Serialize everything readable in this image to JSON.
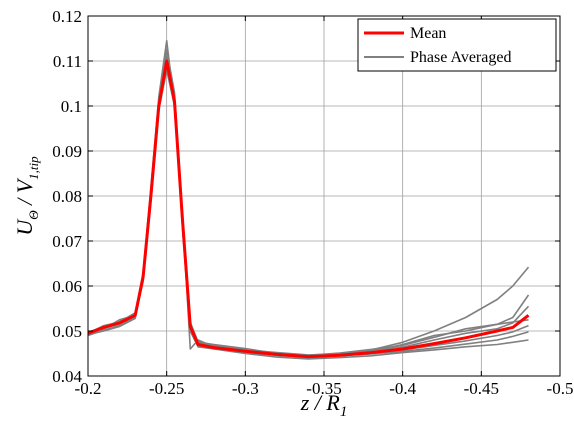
{
  "chart_data": {
    "type": "line",
    "title": "",
    "xlabel": "z / R",
    "xlabel_subscript": "1",
    "ylabel": "U / V",
    "ylabel_subscript_1": "Θ",
    "ylabel_subscript_2": "1,tip",
    "xlim": [
      -0.2,
      -0.5
    ],
    "ylim": [
      0.04,
      0.12
    ],
    "x_ticks": [
      "-0.2",
      "-0.25",
      "-0.3",
      "-0.35",
      "-0.4",
      "-0.45",
      "-0.5"
    ],
    "y_ticks": [
      "0.04",
      "0.05",
      "0.06",
      "0.07",
      "0.08",
      "0.09",
      "0.1",
      "0.11",
      "0.12"
    ],
    "grid": true,
    "legend_position": "top-right",
    "series": [
      {
        "name": "Mean",
        "color": "#ff0000",
        "x": [
          -0.2,
          -0.21,
          -0.22,
          -0.23,
          -0.235,
          -0.24,
          -0.245,
          -0.25,
          -0.255,
          -0.26,
          -0.265,
          -0.27,
          -0.28,
          -0.3,
          -0.32,
          -0.34,
          -0.36,
          -0.38,
          -0.4,
          -0.42,
          -0.44,
          -0.46,
          -0.47,
          -0.48
        ],
        "y": [
          0.0495,
          0.0508,
          0.0518,
          0.0535,
          0.062,
          0.08,
          0.1,
          0.11,
          0.101,
          0.075,
          0.051,
          0.047,
          0.0463,
          0.0455,
          0.0448,
          0.0443,
          0.0446,
          0.0452,
          0.046,
          0.0472,
          0.0485,
          0.05,
          0.0508,
          0.0535
        ]
      },
      {
        "name": "Phase Averaged",
        "color": "#808080",
        "x": [
          -0.2,
          -0.21,
          -0.22,
          -0.23,
          -0.235,
          -0.24,
          -0.245,
          -0.25,
          -0.255,
          -0.26,
          -0.265,
          -0.27,
          -0.28,
          -0.3,
          -0.32,
          -0.34,
          -0.36,
          -0.38,
          -0.4,
          -0.42,
          -0.44,
          -0.46,
          -0.47,
          -0.48
        ],
        "y": [
          0.0495,
          0.0512,
          0.052,
          0.054,
          0.063,
          0.082,
          0.102,
          0.1145,
          0.1,
          0.074,
          0.05,
          0.0465,
          0.0462,
          0.0452,
          0.0446,
          0.0441,
          0.0445,
          0.0449,
          0.0455,
          0.0462,
          0.0471,
          0.048,
          0.0488,
          0.0498
        ]
      }
    ],
    "extra_phase_averaged_traces": [
      [
        0.049,
        0.0502,
        0.0512,
        0.053,
        0.061,
        0.079,
        0.099,
        0.108,
        0.1,
        0.076,
        0.046,
        0.048,
        0.0465,
        0.0458,
        0.0452,
        0.0447,
        0.0449,
        0.0458,
        0.0475,
        0.05,
        0.053,
        0.057,
        0.06,
        0.0642
      ],
      [
        0.0498,
        0.0505,
        0.0525,
        0.0535,
        0.062,
        0.081,
        0.101,
        0.1125,
        0.103,
        0.076,
        0.052,
        0.0475,
        0.047,
        0.0461,
        0.045,
        0.0445,
        0.0449,
        0.0455,
        0.047,
        0.049,
        0.05,
        0.0515,
        0.053,
        0.058
      ],
      [
        0.0492,
        0.05,
        0.051,
        0.0528,
        0.0615,
        0.079,
        0.1,
        0.109,
        0.1,
        0.073,
        0.05,
        0.0465,
        0.046,
        0.045,
        0.0442,
        0.0438,
        0.0441,
        0.0445,
        0.0452,
        0.0458,
        0.0465,
        0.047,
        0.0475,
        0.048
      ],
      [
        0.0496,
        0.0508,
        0.0518,
        0.0537,
        0.0625,
        0.0805,
        0.1,
        0.1105,
        0.102,
        0.075,
        0.051,
        0.0472,
        0.0467,
        0.0457,
        0.0449,
        0.0444,
        0.0448,
        0.0456,
        0.0464,
        0.048,
        0.0495,
        0.0505,
        0.0518,
        0.0555
      ],
      [
        0.0493,
        0.0506,
        0.0516,
        0.0532,
        0.062,
        0.08,
        0.0995,
        0.1095,
        0.1,
        0.074,
        0.0505,
        0.0468,
        0.0462,
        0.0453,
        0.0446,
        0.0441,
        0.0446,
        0.0451,
        0.0458,
        0.0468,
        0.0478,
        0.049,
        0.0498,
        0.0512
      ],
      [
        0.0497,
        0.051,
        0.052,
        0.054,
        0.0625,
        0.0815,
        0.101,
        0.111,
        0.102,
        0.0755,
        0.0515,
        0.0476,
        0.0469,
        0.0459,
        0.0451,
        0.0446,
        0.0451,
        0.0459,
        0.0468,
        0.0486,
        0.0505,
        0.0515,
        0.052,
        0.0525
      ]
    ]
  }
}
